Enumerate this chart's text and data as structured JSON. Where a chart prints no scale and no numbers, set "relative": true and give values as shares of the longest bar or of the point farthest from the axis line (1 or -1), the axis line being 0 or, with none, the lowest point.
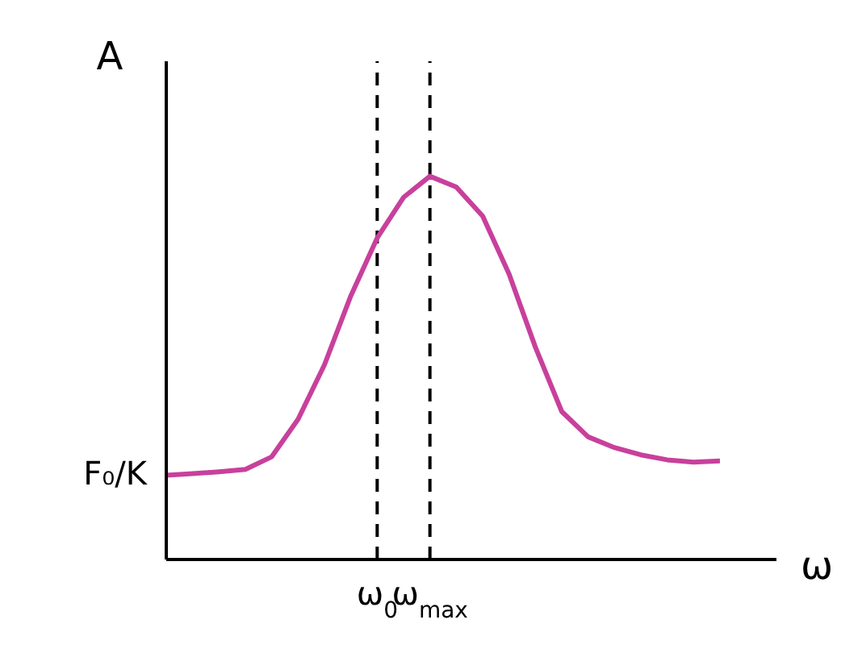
{
  "chart_data": {
    "type": "line",
    "relative": true,
    "ylabel": "A",
    "xlabel": "ω",
    "categories": [
      null,
      null,
      null,
      null,
      null,
      null,
      null,
      null,
      "ω$_{0}$",
      null,
      "ω$_{max}$",
      null,
      null,
      null,
      null,
      null,
      null,
      null,
      null,
      null,
      null,
      null
    ],
    "series": [
      {
        "color": "#c8409c",
        "values": [
          0.22,
          0.224,
          0.229,
          0.235,
          0.268,
          0.366,
          0.508,
          0.688,
          0.839,
          0.945,
          1,
          0.972,
          0.896,
          0.745,
          0.554,
          0.386,
          0.32,
          0.292,
          0.273,
          0.26,
          0.254,
          0.257
        ]
      }
    ],
    "ref_lines": [
      {
        "axis": "x",
        "value": "ω$_{0}$",
        "line_style": "dashed",
        "color": "#000000"
      },
      {
        "axis": "x",
        "value": "ω$_{max}$",
        "line_style": "dashed",
        "color": "#000000"
      }
    ],
    "annotations": [
      "F₀/K"
    ],
    "grid": false,
    "legend": false,
    "marker": "none",
    "line_style": "solid"
  }
}
